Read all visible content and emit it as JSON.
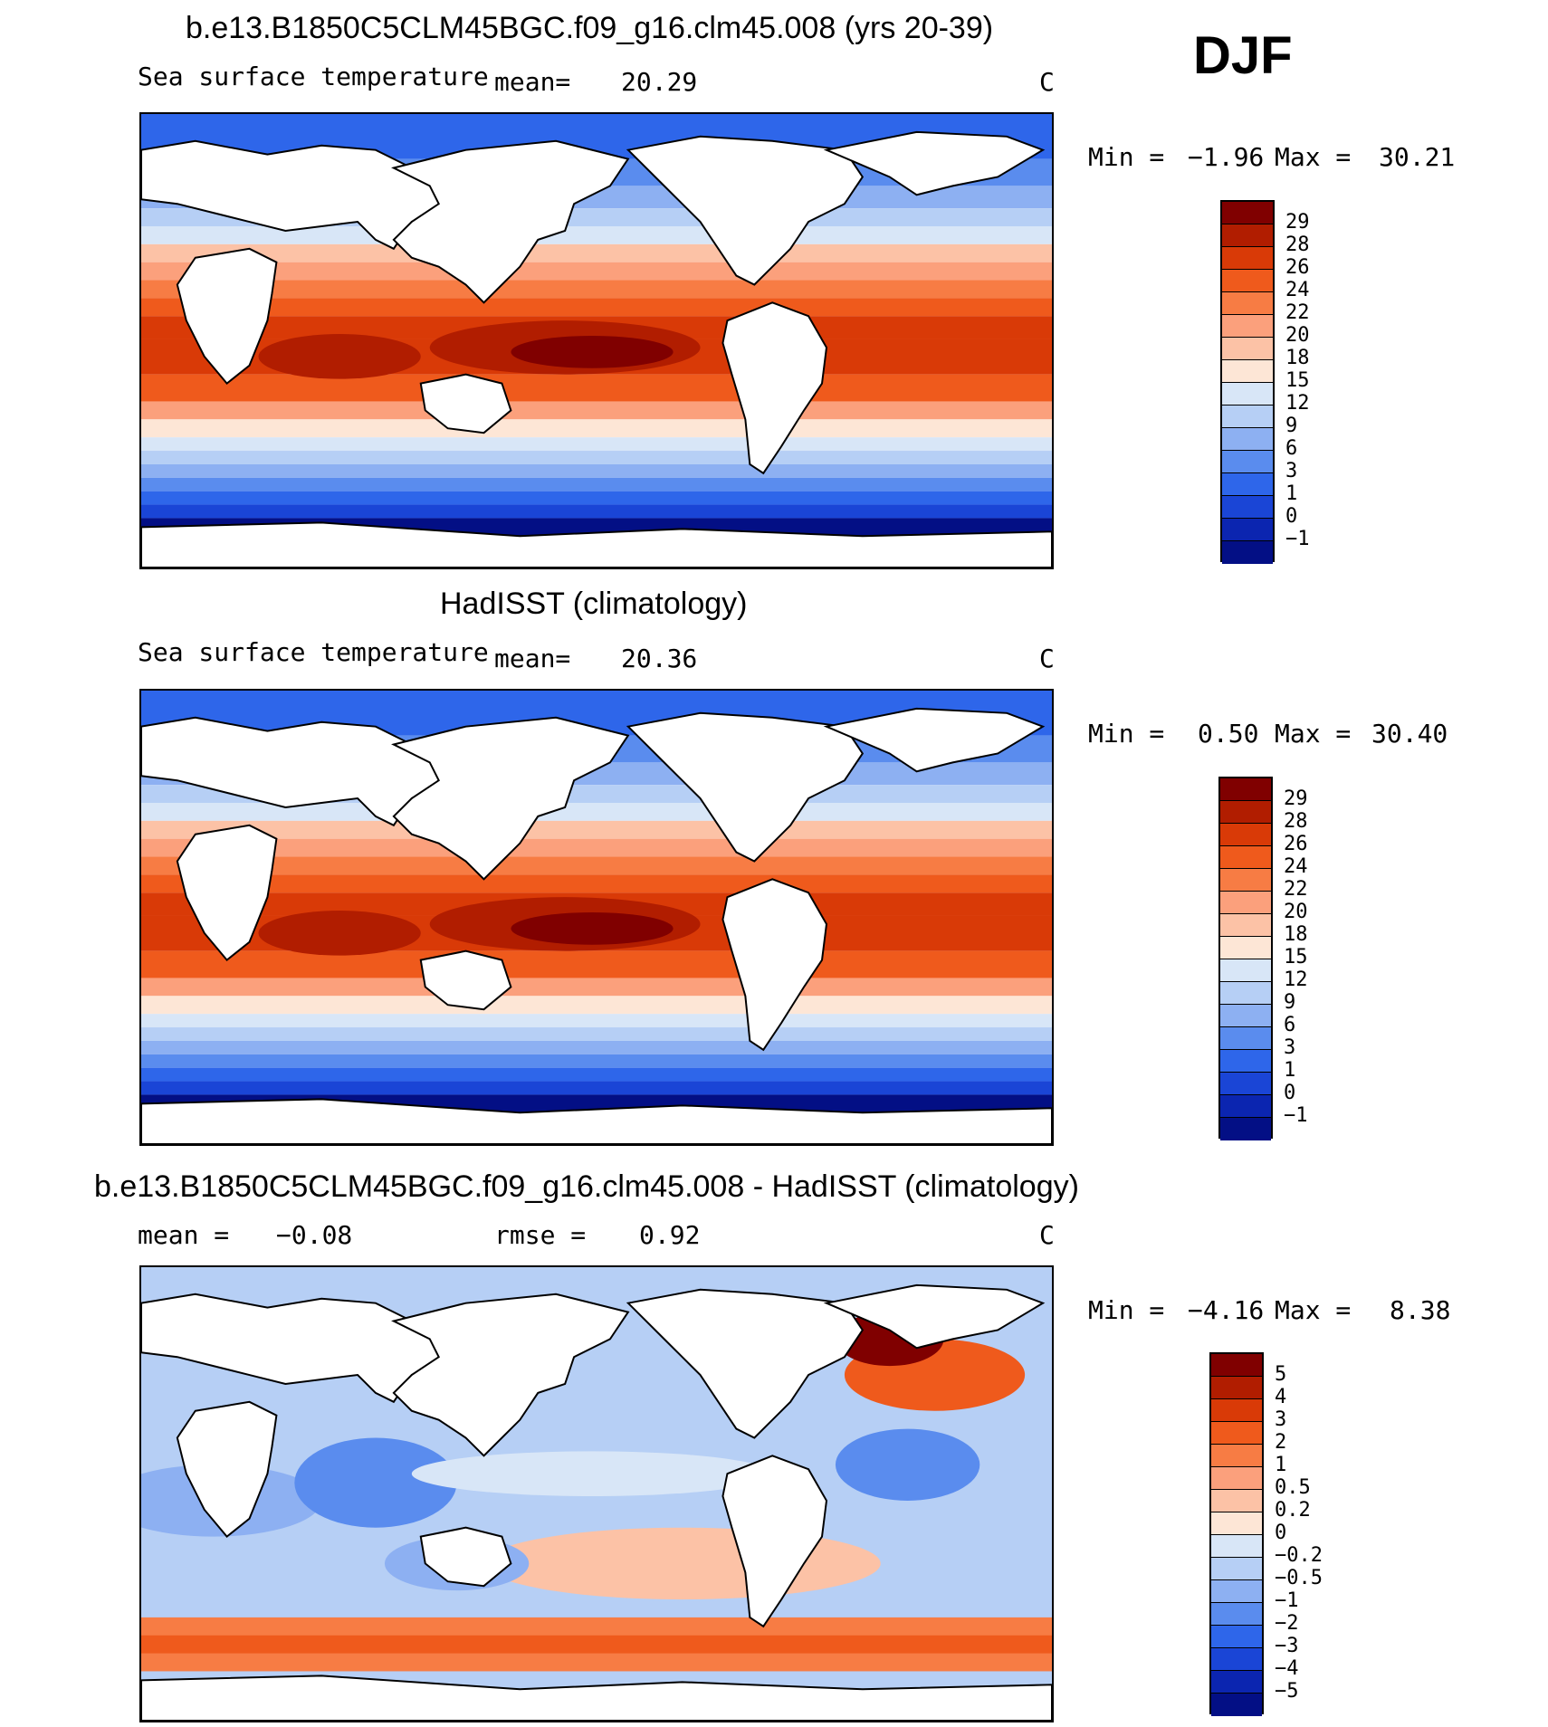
{
  "season": "DJF",
  "panels": [
    {
      "title": "b.e13.B1850C5CLM45BGC.f09_g16.clm45.008 (yrs 20-39)",
      "left_label": "Sea surface temperature",
      "mean_label": "mean=",
      "mean_value": "20.29",
      "units": "C",
      "min_label": "Min =",
      "min_value": "−1.96",
      "max_label": "Max =",
      "max_value": "30.21",
      "colorbar": {
        "labels": [
          "29",
          "28",
          "26",
          "24",
          "22",
          "20",
          "18",
          "15",
          "12",
          "9",
          "6",
          "3",
          "1",
          "0",
          "−1"
        ],
        "colors": [
          "#800000",
          "#b11d00",
          "#d93a07",
          "#ef5a1c",
          "#f77c44",
          "#fba07c",
          "#fcc2a6",
          "#fde6d6",
          "#d8e6f7",
          "#b6cff5",
          "#8db0f2",
          "#5a8cee",
          "#2e66ea",
          "#1a45d6",
          "#0b25b0",
          "#030f85"
        ]
      }
    },
    {
      "title": "HadISST (climatology)",
      "left_label": "Sea surface temperature",
      "mean_label": "mean=",
      "mean_value": "20.36",
      "units": "C",
      "min_label": "Min =",
      "min_value": "0.50",
      "max_label": "Max =",
      "max_value": "30.40",
      "colorbar": {
        "labels": [
          "29",
          "28",
          "26",
          "24",
          "22",
          "20",
          "18",
          "15",
          "12",
          "9",
          "6",
          "3",
          "1",
          "0",
          "−1"
        ],
        "colors": [
          "#800000",
          "#b11d00",
          "#d93a07",
          "#ef5a1c",
          "#f77c44",
          "#fba07c",
          "#fcc2a6",
          "#fde6d6",
          "#d8e6f7",
          "#b6cff5",
          "#8db0f2",
          "#5a8cee",
          "#2e66ea",
          "#1a45d6",
          "#0b25b0",
          "#030f85"
        ]
      }
    },
    {
      "title": "b.e13.B1850C5CLM45BGC.f09_g16.clm45.008 - HadISST (climatology)",
      "left_label": "mean =",
      "mean_label": "",
      "mean_value": "−0.08",
      "rmse_label": "rmse =",
      "rmse_value": "0.92",
      "units": "C",
      "min_label": "Min =",
      "min_value": "−4.16",
      "max_label": "Max =",
      "max_value": "8.38",
      "colorbar": {
        "labels": [
          "5",
          "4",
          "3",
          "2",
          "1",
          "0.5",
          "0.2",
          "0",
          "−0.2",
          "−0.5",
          "−1",
          "−2",
          "−3",
          "−4",
          "−5"
        ],
        "colors": [
          "#800000",
          "#b11d00",
          "#d93a07",
          "#ef5a1c",
          "#f77c44",
          "#fba07c",
          "#fcc2a6",
          "#fde6d6",
          "#d8e6f7",
          "#b6cff5",
          "#8db0f2",
          "#5a8cee",
          "#2e66ea",
          "#1a45d6",
          "#0b25b0",
          "#030f85"
        ]
      }
    }
  ]
}
